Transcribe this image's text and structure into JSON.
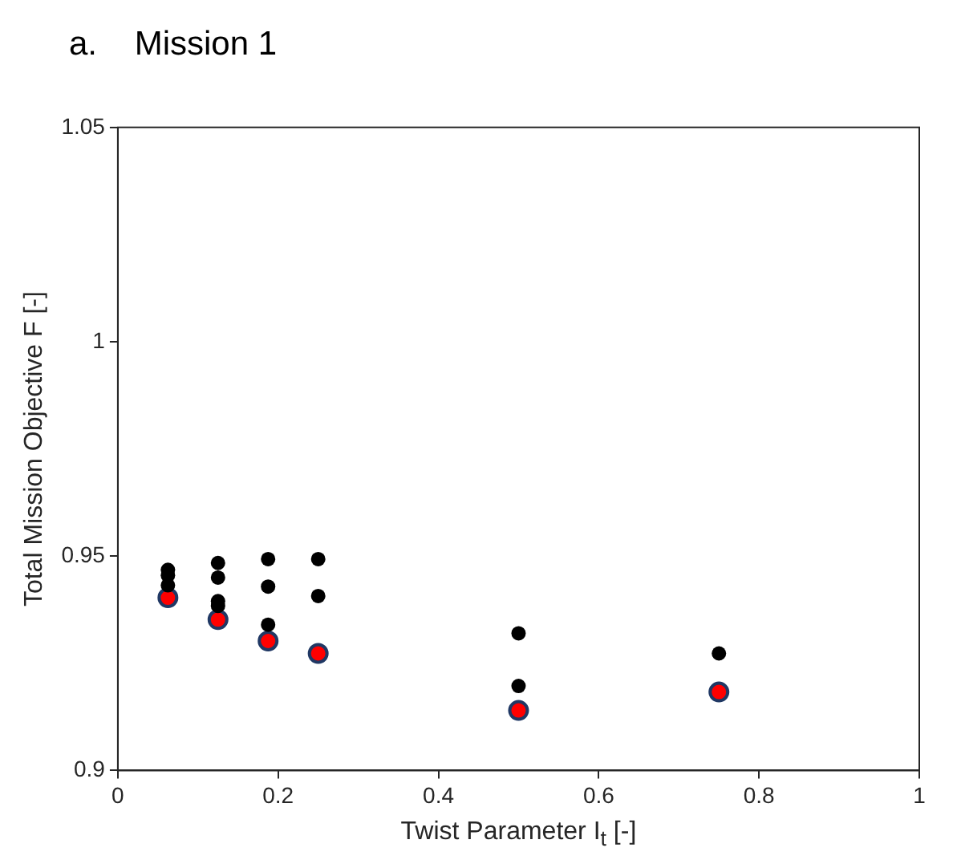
{
  "chart_data": {
    "type": "scatter",
    "title": "a.    Mission 1",
    "xlabel": "Twist Parameter I$_{t}$ [-]",
    "ylabel": "Total Mission Objective F [-]",
    "series": [
      {
        "color": "#000000",
        "x": [
          0.0625,
          0.0625,
          0.0625,
          0.125,
          0.125,
          0.125,
          0.125,
          0.1875,
          0.1875,
          0.1875,
          0.25,
          0.25,
          0.5,
          0.5,
          0.75
        ],
        "values": [
          0.9468,
          0.9455,
          0.9432,
          0.9484,
          0.945,
          0.9395,
          0.9384,
          0.9493,
          0.9429,
          0.934,
          0.9493,
          0.9407,
          0.932,
          0.9197,
          0.9273
        ]
      },
      {
        "color": "#ff0000",
        "x": [
          0.0625,
          0.125,
          0.1875,
          0.25,
          0.5,
          0.75
        ],
        "values": [
          0.9403,
          0.9352,
          0.9302,
          0.9273,
          0.914,
          0.9183
        ]
      }
    ],
    "xlim": [
      0,
      1
    ],
    "xticks": [
      0,
      0.2,
      0.4,
      0.6,
      0.8,
      1
    ],
    "ylim": [
      0.9,
      1.05
    ],
    "yticks": [
      0.9,
      0.95,
      1,
      1.05
    ],
    "grid": false,
    "legend": false,
    "marker": "circle"
  }
}
